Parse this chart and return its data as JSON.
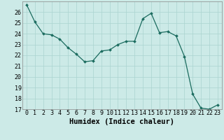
{
  "x": [
    0,
    1,
    2,
    3,
    4,
    5,
    6,
    7,
    8,
    9,
    10,
    11,
    12,
    13,
    14,
    15,
    16,
    17,
    18,
    19,
    20,
    21,
    22,
    23
  ],
  "y": [
    26.7,
    25.1,
    24.0,
    23.9,
    23.5,
    22.7,
    22.1,
    21.4,
    21.5,
    22.4,
    22.5,
    23.0,
    23.3,
    23.3,
    25.4,
    25.9,
    24.1,
    24.2,
    23.8,
    21.9,
    18.4,
    17.1,
    17.0,
    17.4
  ],
  "line_color": "#1a6b5e",
  "marker_color": "#1a6b5e",
  "bg_color": "#cceae7",
  "grid_color": "#aad4d0",
  "xlabel": "Humidex (Indice chaleur)",
  "ylim": [
    17,
    27
  ],
  "xlim": [
    -0.5,
    23.5
  ],
  "yticks": [
    17,
    18,
    19,
    20,
    21,
    22,
    23,
    24,
    25,
    26
  ],
  "xticks": [
    0,
    1,
    2,
    3,
    4,
    5,
    6,
    7,
    8,
    9,
    10,
    11,
    12,
    13,
    14,
    15,
    16,
    17,
    18,
    19,
    20,
    21,
    22,
    23
  ],
  "tick_fontsize": 6,
  "label_fontsize": 7.5
}
